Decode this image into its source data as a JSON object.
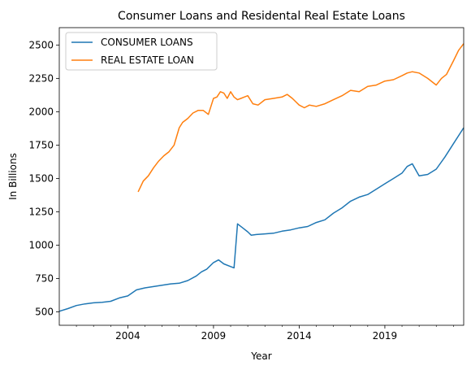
{
  "chart_data": {
    "type": "line",
    "title": "Consumer Loans and Residental Real Estate Loans",
    "xlabel": "Year",
    "ylabel": "In Billions",
    "xlim": [
      2000.0,
      2023.6
    ],
    "ylim": [
      400,
      2630
    ],
    "x_ticks": [
      2004,
      2009,
      2014,
      2019
    ],
    "x_tick_labels": [
      "2004",
      "2009",
      "2014",
      "2019"
    ],
    "y_ticks": [
      500,
      750,
      1000,
      1250,
      1500,
      1750,
      2000,
      2250,
      2500
    ],
    "y_tick_labels": [
      "500",
      "750",
      "1000",
      "1250",
      "1500",
      "1750",
      "2000",
      "2250",
      "2500"
    ],
    "legend_position": "upper-left",
    "grid": false,
    "series": [
      {
        "name": "CONSUMER LOANS",
        "color": "#1f77b4",
        "x": [
          2000.0,
          2000.5,
          2001.0,
          2001.5,
          2002.0,
          2002.5,
          2003.0,
          2003.5,
          2004.0,
          2004.5,
          2005.0,
          2005.5,
          2006.0,
          2006.5,
          2007.0,
          2007.5,
          2008.0,
          2008.3,
          2008.6,
          2009.0,
          2009.3,
          2009.6,
          2010.0,
          2010.2,
          2010.4,
          2010.7,
          2011.0,
          2011.2,
          2011.5,
          2012.0,
          2012.5,
          2013.0,
          2013.5,
          2014.0,
          2014.5,
          2015.0,
          2015.5,
          2016.0,
          2016.5,
          2017.0,
          2017.5,
          2018.0,
          2018.5,
          2019.0,
          2019.5,
          2020.0,
          2020.3,
          2020.6,
          2021.0,
          2021.5,
          2022.0,
          2022.5,
          2023.0,
          2023.6
        ],
        "y": [
          505,
          525,
          548,
          560,
          568,
          572,
          580,
          605,
          620,
          665,
          680,
          690,
          700,
          710,
          715,
          735,
          770,
          800,
          820,
          870,
          890,
          860,
          840,
          830,
          1160,
          1130,
          1100,
          1075,
          1080,
          1085,
          1090,
          1105,
          1115,
          1130,
          1140,
          1170,
          1190,
          1240,
          1280,
          1330,
          1360,
          1380,
          1420,
          1460,
          1500,
          1540,
          1590,
          1610,
          1520,
          1530,
          1570,
          1660,
          1760,
          1880
        ]
      },
      {
        "name": "REAL ESTATE LOAN",
        "color": "#ff7f0e",
        "x": [
          2004.6,
          2004.9,
          2005.2,
          2005.5,
          2005.8,
          2006.1,
          2006.4,
          2006.7,
          2007.0,
          2007.2,
          2007.5,
          2007.8,
          2008.1,
          2008.4,
          2008.7,
          2009.0,
          2009.2,
          2009.4,
          2009.6,
          2009.8,
          2010.0,
          2010.2,
          2010.4,
          2010.6,
          2010.8,
          2011.0,
          2011.3,
          2011.6,
          2012.0,
          2012.5,
          2013.0,
          2013.3,
          2013.6,
          2014.0,
          2014.3,
          2014.6,
          2015.0,
          2015.5,
          2016.0,
          2016.5,
          2017.0,
          2017.5,
          2018.0,
          2018.5,
          2019.0,
          2019.5,
          2020.0,
          2020.3,
          2020.6,
          2021.0,
          2021.5,
          2022.0,
          2022.3,
          2022.6,
          2023.0,
          2023.3,
          2023.6
        ],
        "y": [
          1400,
          1480,
          1520,
          1580,
          1630,
          1670,
          1700,
          1750,
          1880,
          1920,
          1950,
          1990,
          2010,
          2010,
          1980,
          2100,
          2110,
          2150,
          2140,
          2100,
          2150,
          2110,
          2090,
          2100,
          2110,
          2120,
          2060,
          2050,
          2090,
          2100,
          2110,
          2130,
          2100,
          2050,
          2030,
          2050,
          2040,
          2060,
          2090,
          2120,
          2160,
          2150,
          2190,
          2200,
          2230,
          2240,
          2270,
          2290,
          2300,
          2290,
          2250,
          2200,
          2250,
          2280,
          2380,
          2460,
          2510
        ]
      }
    ]
  }
}
